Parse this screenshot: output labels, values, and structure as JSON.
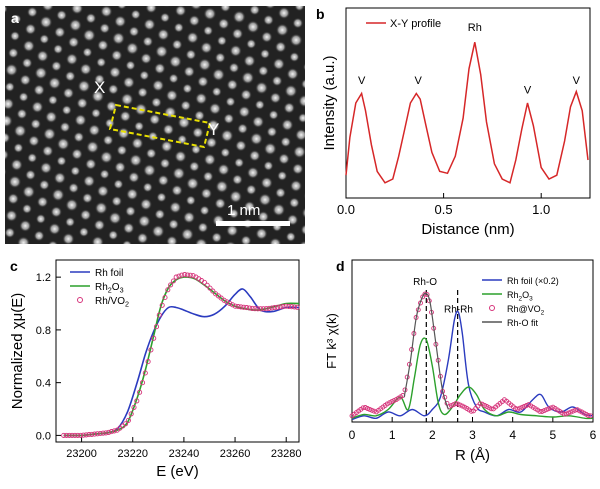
{
  "panels": {
    "a": {
      "label": "a",
      "x_marker": "X",
      "y_marker": "Y",
      "scale_bar": "1 nm"
    },
    "b": {
      "label": "b"
    },
    "c": {
      "label": "c"
    },
    "d": {
      "label": "d"
    }
  },
  "chart_data": [
    {
      "panel": "b",
      "type": "line",
      "title": "",
      "xlabel": "Distance (nm)",
      "ylabel": "Intensity (a.u.)",
      "xlim": [
        0,
        1.25
      ],
      "ylim": [
        0,
        1
      ],
      "xticks": [
        0.0,
        0.5,
        1.0
      ],
      "xtick_labels": [
        "0.0",
        "0.5",
        "1.0"
      ],
      "legend": [
        {
          "name": "X-Y profile",
          "color": "#d62728"
        }
      ],
      "series": [
        {
          "name": "X-Y profile",
          "color": "#d62728",
          "x": [
            0.0,
            0.02,
            0.05,
            0.08,
            0.1,
            0.13,
            0.16,
            0.2,
            0.24,
            0.27,
            0.3,
            0.33,
            0.36,
            0.38,
            0.41,
            0.44,
            0.48,
            0.52,
            0.56,
            0.6,
            0.63,
            0.66,
            0.69,
            0.72,
            0.76,
            0.8,
            0.84,
            0.87,
            0.9,
            0.93,
            0.96,
            1.0,
            1.04,
            1.08,
            1.12,
            1.15,
            1.18,
            1.21,
            1.24
          ],
          "y": [
            0.12,
            0.32,
            0.5,
            0.55,
            0.46,
            0.28,
            0.14,
            0.08,
            0.1,
            0.22,
            0.36,
            0.5,
            0.55,
            0.52,
            0.38,
            0.24,
            0.14,
            0.13,
            0.22,
            0.42,
            0.68,
            0.82,
            0.65,
            0.4,
            0.18,
            0.1,
            0.08,
            0.2,
            0.36,
            0.5,
            0.38,
            0.16,
            0.1,
            0.12,
            0.3,
            0.48,
            0.56,
            0.46,
            0.2
          ]
        }
      ],
      "annotations": [
        {
          "text": "V",
          "x": 0.08,
          "y": 0.6
        },
        {
          "text": "V",
          "x": 0.37,
          "y": 0.6
        },
        {
          "text": "Rh",
          "x": 0.66,
          "y": 0.88
        },
        {
          "text": "V",
          "x": 0.93,
          "y": 0.55
        },
        {
          "text": "V",
          "x": 1.18,
          "y": 0.6
        }
      ]
    },
    {
      "panel": "c",
      "type": "line",
      "title": "",
      "xlabel": "E (eV)",
      "ylabel": "Normalized χμ(E)",
      "xlim": [
        23190,
        23285
      ],
      "ylim": [
        -0.05,
        1.33
      ],
      "xticks": [
        23200,
        23220,
        23240,
        23260,
        23280
      ],
      "xtick_labels": [
        "23200",
        "23220",
        "23240",
        "23260",
        "23280"
      ],
      "yticks": [
        0.0,
        0.4,
        0.8,
        1.2
      ],
      "ytick_labels": [
        "0.0",
        "0.4",
        "0.8",
        "1.2"
      ],
      "legend": [
        {
          "name": "Rh foil",
          "color": "#2b3bbf",
          "style": "line"
        },
        {
          "name": "Rh₂O₃",
          "color": "#2ca02c",
          "style": "line"
        },
        {
          "name": "Rh/VO₂",
          "color": "#d6337a",
          "style": "marker"
        }
      ],
      "series": [
        {
          "name": "Rh foil",
          "color": "#2b3bbf",
          "x": [
            23193,
            23200,
            23205,
            23210,
            23214,
            23218,
            23222,
            23225,
            23228,
            23231,
            23234,
            23237,
            23240,
            23244,
            23248,
            23252,
            23256,
            23260,
            23263,
            23266,
            23270,
            23275,
            23280,
            23285
          ],
          "y": [
            0.0,
            0.0,
            0.01,
            0.02,
            0.05,
            0.18,
            0.42,
            0.62,
            0.78,
            0.9,
            0.97,
            0.97,
            0.95,
            0.92,
            0.9,
            0.92,
            0.98,
            1.07,
            1.11,
            1.05,
            0.95,
            0.94,
            0.97,
            0.97
          ]
        },
        {
          "name": "Rh₂O₃",
          "color": "#2ca02c",
          "x": [
            23193,
            23200,
            23205,
            23210,
            23214,
            23218,
            23222,
            23225,
            23228,
            23231,
            23234,
            23237,
            23240,
            23244,
            23248,
            23252,
            23256,
            23260,
            23264,
            23268,
            23272,
            23276,
            23280,
            23285
          ],
          "y": [
            0.0,
            0.0,
            0.01,
            0.02,
            0.04,
            0.1,
            0.3,
            0.5,
            0.74,
            0.98,
            1.12,
            1.18,
            1.2,
            1.19,
            1.14,
            1.08,
            1.02,
            0.98,
            0.96,
            0.95,
            0.96,
            0.98,
            1.0,
            1.0
          ]
        },
        {
          "name": "Rh/VO₂",
          "color": "#d6337a",
          "x": [
            23193,
            23200,
            23205,
            23210,
            23214,
            23218,
            23222,
            23225,
            23228,
            23231,
            23234,
            23237,
            23240,
            23244,
            23248,
            23252,
            23256,
            23260,
            23264,
            23268,
            23272,
            23276,
            23280,
            23285
          ],
          "y": [
            0.0,
            0.0,
            0.01,
            0.02,
            0.04,
            0.1,
            0.28,
            0.48,
            0.72,
            0.96,
            1.12,
            1.2,
            1.22,
            1.21,
            1.16,
            1.08,
            1.02,
            0.98,
            0.97,
            0.96,
            0.96,
            0.97,
            0.98,
            0.97
          ]
        }
      ]
    },
    {
      "panel": "d",
      "type": "line",
      "title": "",
      "xlabel": "R (Å)",
      "ylabel": "FT k³ χ(k)",
      "xlim": [
        0,
        6
      ],
      "ylim": [
        0,
        1.3
      ],
      "xticks": [
        0,
        1,
        2,
        3,
        4,
        5,
        6
      ],
      "xtick_labels": [
        "0",
        "1",
        "2",
        "3",
        "4",
        "5",
        "6"
      ],
      "legend": [
        {
          "name": "Rh foil (×0.2)",
          "color": "#2b3bbf",
          "style": "line"
        },
        {
          "name": "Rh₂O₃",
          "color": "#2ca02c",
          "style": "line"
        },
        {
          "name": "Rh@VO₂",
          "color": "#d6337a",
          "style": "marker"
        },
        {
          "name": "Rh-O fit",
          "color": "#555555",
          "style": "line"
        }
      ],
      "annotations": [
        {
          "text": "Rh-O",
          "x": 1.82,
          "y": 1.1
        },
        {
          "text": "Rh-Rh",
          "x": 2.65,
          "y": 0.88
        }
      ],
      "reference_lines": [
        1.85,
        2.63
      ],
      "series": [
        {
          "name": "Rh foil (×0.2)",
          "color": "#2b3bbf",
          "x": [
            0.0,
            0.3,
            0.6,
            0.9,
            1.2,
            1.5,
            1.8,
            2.0,
            2.2,
            2.4,
            2.55,
            2.65,
            2.75,
            2.9,
            3.1,
            3.3,
            3.6,
            3.9,
            4.2,
            4.5,
            4.7,
            4.9,
            5.2,
            5.5,
            5.8,
            6.0
          ],
          "y": [
            0.02,
            0.05,
            0.03,
            0.08,
            0.05,
            0.1,
            0.05,
            0.1,
            0.2,
            0.5,
            0.82,
            0.88,
            0.7,
            0.3,
            0.12,
            0.08,
            0.05,
            0.1,
            0.08,
            0.18,
            0.22,
            0.12,
            0.08,
            0.12,
            0.06,
            0.05
          ]
        },
        {
          "name": "Rh₂O₃",
          "color": "#2ca02c",
          "x": [
            0.0,
            0.3,
            0.6,
            0.9,
            1.2,
            1.4,
            1.55,
            1.7,
            1.85,
            2.0,
            2.15,
            2.3,
            2.5,
            2.7,
            2.9,
            3.1,
            3.3,
            3.6,
            3.9,
            4.2,
            4.6,
            5.0,
            5.4,
            5.8,
            6.0
          ],
          "y": [
            0.03,
            0.06,
            0.05,
            0.1,
            0.2,
            0.1,
            0.35,
            0.62,
            0.66,
            0.45,
            0.15,
            0.06,
            0.12,
            0.22,
            0.28,
            0.22,
            0.1,
            0.05,
            0.08,
            0.06,
            0.05,
            0.04,
            0.05,
            0.03,
            0.03
          ]
        },
        {
          "name": "Rh@VO₂",
          "color": "#d6337a",
          "x": [
            0.0,
            0.3,
            0.6,
            0.9,
            1.1,
            1.3,
            1.45,
            1.6,
            1.75,
            1.85,
            1.95,
            2.1,
            2.25,
            2.4,
            2.6,
            2.8,
            3.0,
            3.2,
            3.5,
            3.8,
            4.1,
            4.4,
            4.7,
            5.0,
            5.3,
            5.6,
            5.9
          ],
          "y": [
            0.05,
            0.12,
            0.08,
            0.15,
            0.18,
            0.22,
            0.5,
            0.85,
            1.0,
            1.04,
            0.95,
            0.6,
            0.25,
            0.12,
            0.15,
            0.12,
            0.08,
            0.15,
            0.1,
            0.18,
            0.1,
            0.14,
            0.08,
            0.12,
            0.06,
            0.1,
            0.05
          ]
        },
        {
          "name": "Rh-O fit",
          "color": "#555555",
          "x": [
            1.3,
            1.45,
            1.6,
            1.75,
            1.85,
            1.95,
            2.1,
            2.25,
            2.4
          ],
          "y": [
            0.2,
            0.48,
            0.84,
            1.0,
            1.03,
            0.95,
            0.6,
            0.26,
            0.1
          ]
        }
      ]
    }
  ]
}
